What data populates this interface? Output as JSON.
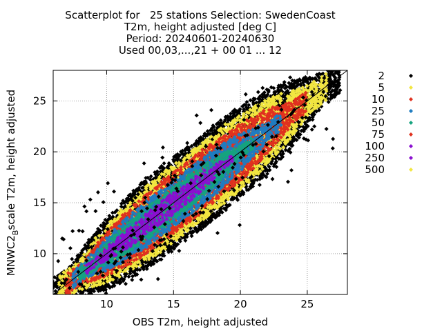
{
  "chart_data": {
    "type": "scatter",
    "title_lines": [
      "Scatterplot for   25 stations Selection: SwedenCoast",
      "T2m, height adjusted [deg C]",
      "Period: 20240601-20240630",
      "Used 00,03,...,21 + 00 01 ... 12"
    ],
    "xlabel": "OBS T2m, height adjusted",
    "ylabel_main": "MNWC2",
    "ylabel_sub": "B",
    "ylabel_rest": "scale T2m, height adjusted",
    "xlim": [
      6,
      28
    ],
    "ylim": [
      6,
      28
    ],
    "xticks": [
      10,
      15,
      20,
      25
    ],
    "yticks": [
      10,
      15,
      20,
      25
    ],
    "grid": true,
    "diagonal_line": true,
    "legend_position": "right, outside",
    "legend": [
      {
        "label": "2",
        "color": "#000000"
      },
      {
        "label": "5",
        "color": "#f2e640"
      },
      {
        "label": "10",
        "color": "#e0311f"
      },
      {
        "label": "25",
        "color": "#1f7cc0"
      },
      {
        "label": "50",
        "color": "#15a37f"
      },
      {
        "label": "75",
        "color": "#e0311f"
      },
      {
        "label": "100",
        "color": "#8a0fd0"
      },
      {
        "label": "250",
        "color": "#8a0fd0"
      },
      {
        "label": "500",
        "color": "#f2e640"
      }
    ],
    "density_bands": [
      {
        "label": "100",
        "color": "#8a0fd0",
        "x_range": [
          8.5,
          19.5
        ],
        "half_width": 1.0
      },
      {
        "label": "50",
        "color": "#15a37f",
        "x_range": [
          8.0,
          21.0
        ],
        "half_width": 1.6
      },
      {
        "label": "25",
        "color": "#1f7cc0",
        "x_range": [
          7.5,
          23.0
        ],
        "half_width": 2.3
      },
      {
        "label": "10",
        "color": "#e0311f",
        "x_range": [
          7.0,
          25.0
        ],
        "half_width": 3.0
      },
      {
        "label": "5",
        "color": "#f2e640",
        "x_range": [
          6.5,
          26.5
        ],
        "half_width": 3.8
      },
      {
        "label": "2",
        "color": "#000000",
        "x_range": [
          6.0,
          27.5
        ],
        "half_width": 4.6
      }
    ]
  }
}
